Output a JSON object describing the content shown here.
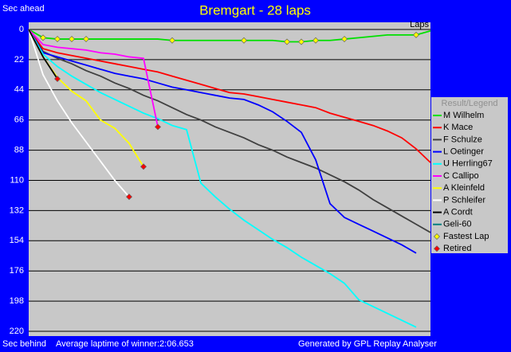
{
  "chart_data": {
    "type": "line",
    "title": "Bremgart - 28 laps",
    "y_label_top": "Sec ahead",
    "y_label_bottom": "Sec behind",
    "x_label": "Laps",
    "footer_left": "Average laptime of winner:2:06.653",
    "footer_right": "Generated by GPL Replay Analyser",
    "legend_title": "Result/Legend",
    "legend": "right",
    "grid": true,
    "y_reversed": true,
    "xlim": [
      0,
      28
    ],
    "ylim": [
      0,
      220
    ],
    "yticks": [
      0,
      22,
      44,
      66,
      88,
      110,
      132,
      154,
      176,
      198,
      220
    ],
    "x": [
      0,
      1,
      2,
      3,
      4,
      5,
      6,
      7,
      8,
      9,
      10,
      11,
      12,
      13,
      14,
      15,
      16,
      17,
      18,
      19,
      20,
      21,
      22,
      23,
      24,
      25,
      26,
      27,
      28
    ],
    "series": [
      {
        "name": "M Wilhelm",
        "color": "#00e000",
        "values": [
          0,
          6,
          7,
          7,
          7,
          7,
          7,
          7,
          7,
          7,
          8,
          8,
          8,
          8,
          8,
          8,
          8,
          8,
          9,
          9,
          8,
          8,
          7,
          6,
          5,
          4,
          4,
          4,
          1
        ]
      },
      {
        "name": "K Mace",
        "color": "#ff0000",
        "values": [
          0,
          14,
          17,
          19,
          21,
          23,
          25,
          27,
          29,
          31,
          34,
          37,
          40,
          43,
          46,
          47,
          49,
          51,
          53,
          55,
          57,
          61,
          64,
          67,
          70,
          74,
          79,
          87,
          97
        ]
      },
      {
        "name": "F Schulze",
        "color": "#404040",
        "values": [
          0,
          16,
          21,
          25,
          30,
          34,
          39,
          43,
          48,
          52,
          57,
          62,
          66,
          71,
          75,
          79,
          84,
          88,
          93,
          97,
          101,
          106,
          111,
          117,
          124,
          130,
          136,
          142,
          148
        ]
      },
      {
        "name": "L Oetinger",
        "color": "#0000ff",
        "values": [
          0,
          17,
          20,
          23,
          26,
          29,
          32,
          34,
          36,
          39,
          42,
          44,
          46,
          48,
          50,
          51,
          55,
          60,
          67,
          75,
          95,
          127,
          137,
          142,
          147,
          152,
          157,
          163,
          null
        ]
      },
      {
        "name": "U Herrling67",
        "color": "#00ffff",
        "values": [
          0,
          18,
          27,
          34,
          40,
          46,
          51,
          56,
          61,
          65,
          70,
          73,
          112,
          122,
          131,
          139,
          146,
          153,
          159,
          166,
          172,
          178,
          185,
          197,
          202,
          207,
          212,
          217,
          null
        ]
      },
      {
        "name": "C Callipo",
        "color": "#ff00ff",
        "values": [
          0,
          11,
          13,
          14,
          15,
          17,
          18,
          20,
          21,
          71,
          null,
          null,
          null,
          null,
          null,
          null,
          null,
          null,
          null,
          null,
          null,
          null,
          null,
          null,
          null,
          null,
          null,
          null,
          null
        ]
      },
      {
        "name": "A Kleinfeld",
        "color": "#ffff00",
        "values": [
          0,
          20,
          35,
          45,
          52,
          66,
          72,
          83,
          100,
          null,
          null,
          null,
          null,
          null,
          null,
          null,
          null,
          null,
          null,
          null,
          null,
          null,
          null,
          null,
          null,
          null,
          null,
          null,
          null
        ]
      },
      {
        "name": "P Schleifer",
        "color": "#ffffff",
        "values": [
          0,
          33,
          52,
          68,
          82,
          96,
          110,
          122,
          null,
          null,
          null,
          null,
          null,
          null,
          null,
          null,
          null,
          null,
          null,
          null,
          null,
          null,
          null,
          null,
          null,
          null,
          null,
          null,
          null
        ]
      },
      {
        "name": "A Cordt",
        "color": "#000000",
        "values": [
          0,
          20,
          36,
          null,
          null,
          null,
          null,
          null,
          null,
          null,
          null,
          null,
          null,
          null,
          null,
          null,
          null,
          null,
          null,
          null,
          null,
          null,
          null,
          null,
          null,
          null,
          null,
          null,
          null
        ]
      },
      {
        "name": "Geli-60",
        "color": "#008080"
      },
      {
        "name": "Fastest Lap",
        "color": "#ffff00",
        "marker": "diamond",
        "x": [
          1,
          2,
          3,
          4,
          10,
          15,
          18,
          19,
          20,
          22,
          27
        ],
        "values": [
          6,
          7,
          7,
          7,
          8,
          8,
          9,
          9,
          8,
          7,
          4
        ]
      },
      {
        "name": "Retired",
        "color": "#ff0000",
        "marker": "diamond",
        "x": [
          2,
          7,
          8,
          9
        ],
        "values": [
          36,
          122,
          100,
          71
        ]
      }
    ]
  }
}
